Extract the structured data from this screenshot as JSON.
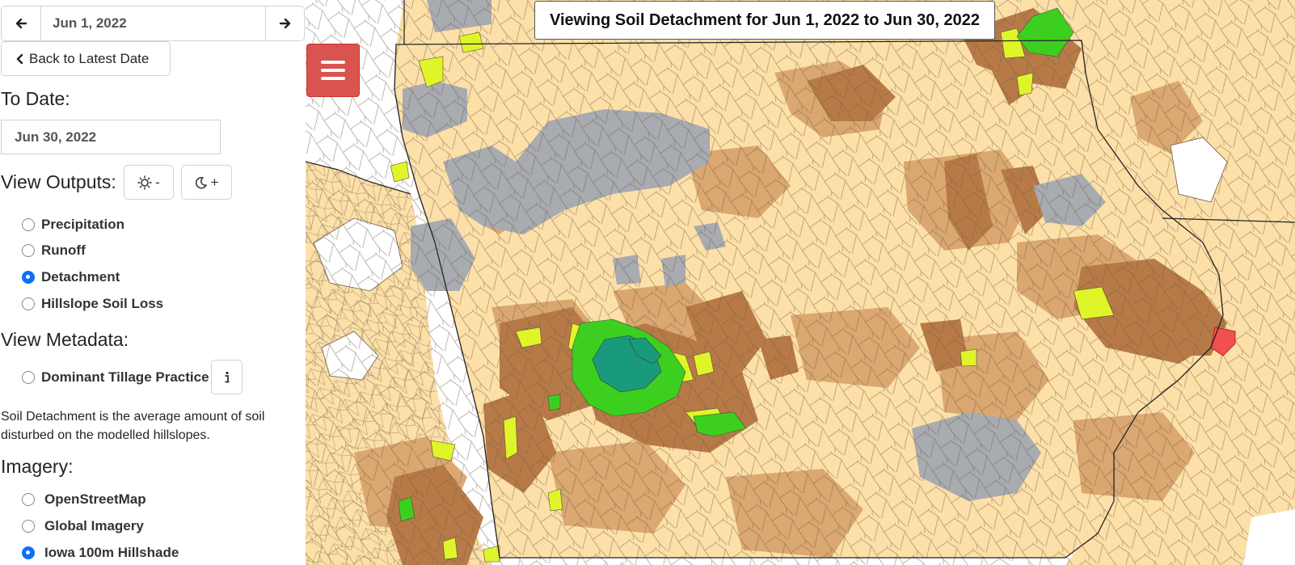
{
  "sidebar": {
    "from_date": "Jun 1, 2022",
    "back_label": "Back to Latest Date",
    "to_date_label": "To Date:",
    "to_date": "Jun 30, 2022",
    "view_outputs_label": "View Outputs:",
    "theme_light_label": "-",
    "theme_dark_label": "+",
    "outputs": [
      {
        "label": "Precipitation",
        "checked": false
      },
      {
        "label": "Runoff",
        "checked": false
      },
      {
        "label": "Detachment",
        "checked": true
      },
      {
        "label": "Hillslope Soil Loss",
        "checked": false
      }
    ],
    "metadata_label": "View Metadata:",
    "metadata_option": "Dominant Tillage Practice",
    "description": "Soil Detachment is the average amount of soil disturbed on the modelled hillslopes.",
    "imagery_label": "Imagery:",
    "imagery": [
      {
        "label": "OpenStreetMap",
        "checked": false
      },
      {
        "label": "Global Imagery",
        "checked": false
      },
      {
        "label": "Iowa 100m Hillshade",
        "checked": true
      }
    ]
  },
  "map": {
    "title": "Viewing Soil Detachment for Jun 1, 2022 to Jun 30, 2022",
    "colors": {
      "base": "#fde0a8",
      "light_brown": "#d9a46e",
      "dark_brown": "#b77a47",
      "gray": "#a8abb0",
      "yellow_green": "#dff52a",
      "green": "#3ccf1f",
      "teal": "#1a9a7d",
      "red": "#f05050",
      "outline": "#5a4a3a"
    }
  }
}
